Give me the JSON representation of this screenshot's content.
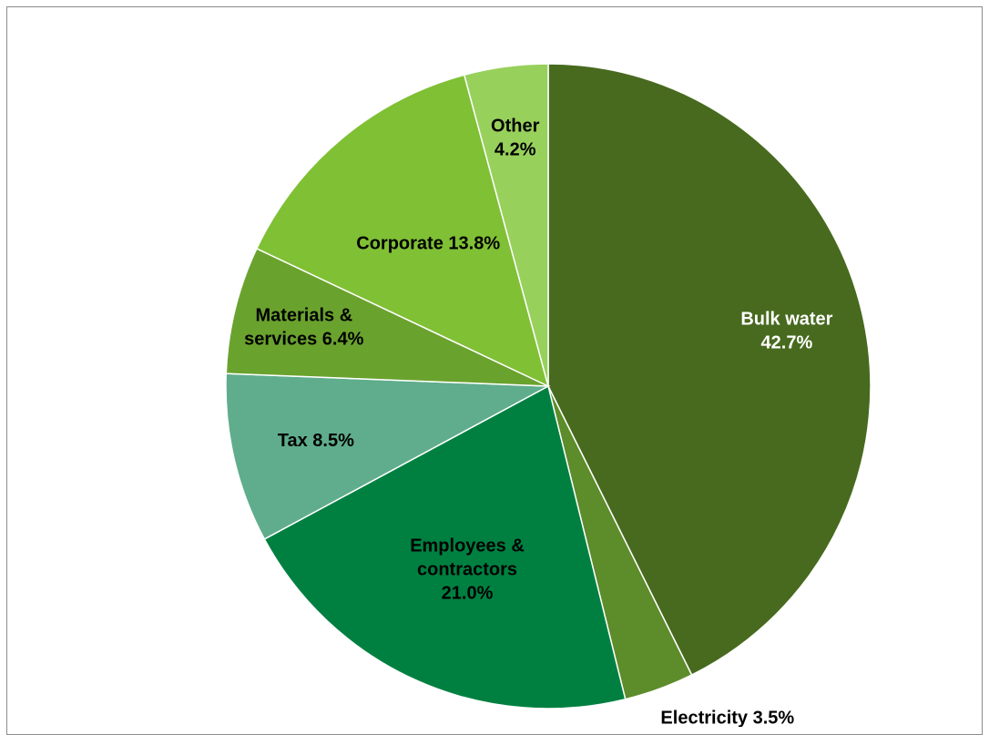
{
  "chart_data": {
    "type": "pie",
    "title": "",
    "start_angle_deg": 0,
    "direction": "clockwise",
    "slices": [
      {
        "name": "Bulk water",
        "value": 42.7,
        "label_lines": [
          "Bulk water",
          "42.7%"
        ],
        "color": "#476a1e",
        "label_color": "#ffffff"
      },
      {
        "name": "Electricity",
        "value": 3.5,
        "label_lines": [
          "Electricity 3.5%"
        ],
        "color": "#5d8c2a",
        "label_color": "#000000",
        "label_outside": true
      },
      {
        "name": "Employees & contractors",
        "value": 21.0,
        "label_lines": [
          "Employees &",
          "contractors",
          "21.0%"
        ],
        "color": "#008040",
        "label_color": "#000000"
      },
      {
        "name": "Tax",
        "value": 8.5,
        "label_lines": [
          "Tax 8.5%"
        ],
        "color": "#5fad8c",
        "label_color": "#000000"
      },
      {
        "name": "Materials & services",
        "value": 6.4,
        "label_lines": [
          "Materials &",
          "services 6.4%"
        ],
        "color": "#6aa22e",
        "label_color": "#000000"
      },
      {
        "name": "Corporate",
        "value": 13.8,
        "label_lines": [
          "Corporate 13.8%"
        ],
        "color": "#80c035",
        "label_color": "#000000"
      },
      {
        "name": "Other",
        "value": 4.2,
        "label_lines": [
          "Other",
          "4.2%"
        ],
        "color": "#98d05c",
        "label_color": "#000000"
      }
    ]
  }
}
